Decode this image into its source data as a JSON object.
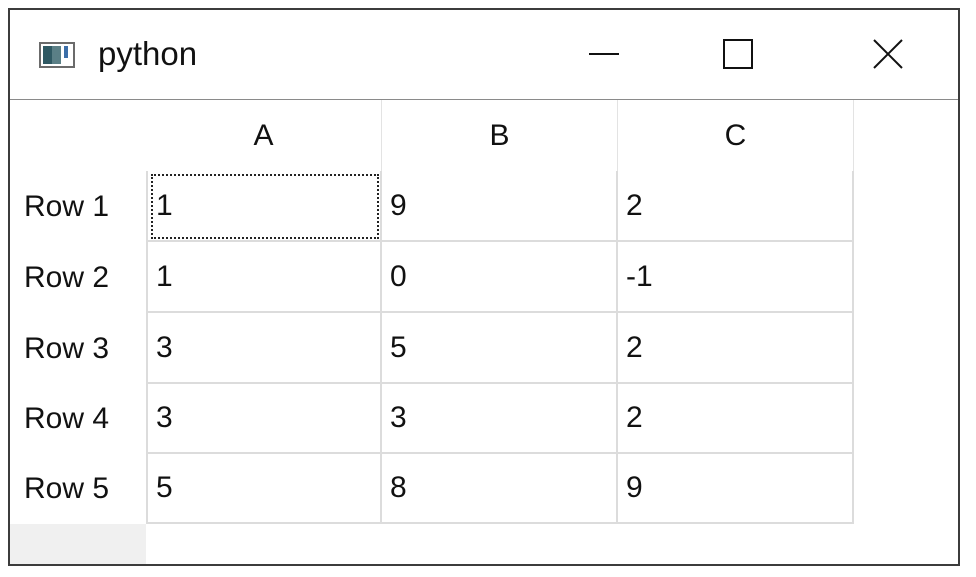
{
  "window": {
    "title": "python",
    "icon": "app-window-icon",
    "controls": {
      "minimize": "minimize-icon",
      "maximize": "maximize-icon",
      "close": "close-icon"
    }
  },
  "table": {
    "columns": [
      "A",
      "B",
      "C"
    ],
    "rows": [
      {
        "header": "Row 1",
        "cells": [
          "1",
          "9",
          "2"
        ]
      },
      {
        "header": "Row 2",
        "cells": [
          "1",
          "0",
          "-1"
        ]
      },
      {
        "header": "Row 3",
        "cells": [
          "3",
          "5",
          "2"
        ]
      },
      {
        "header": "Row 4",
        "cells": [
          "3",
          "3",
          "2"
        ]
      },
      {
        "header": "Row 5",
        "cells": [
          "5",
          "8",
          "9"
        ]
      }
    ],
    "focused_cell": {
      "row": 0,
      "col": 0
    }
  }
}
